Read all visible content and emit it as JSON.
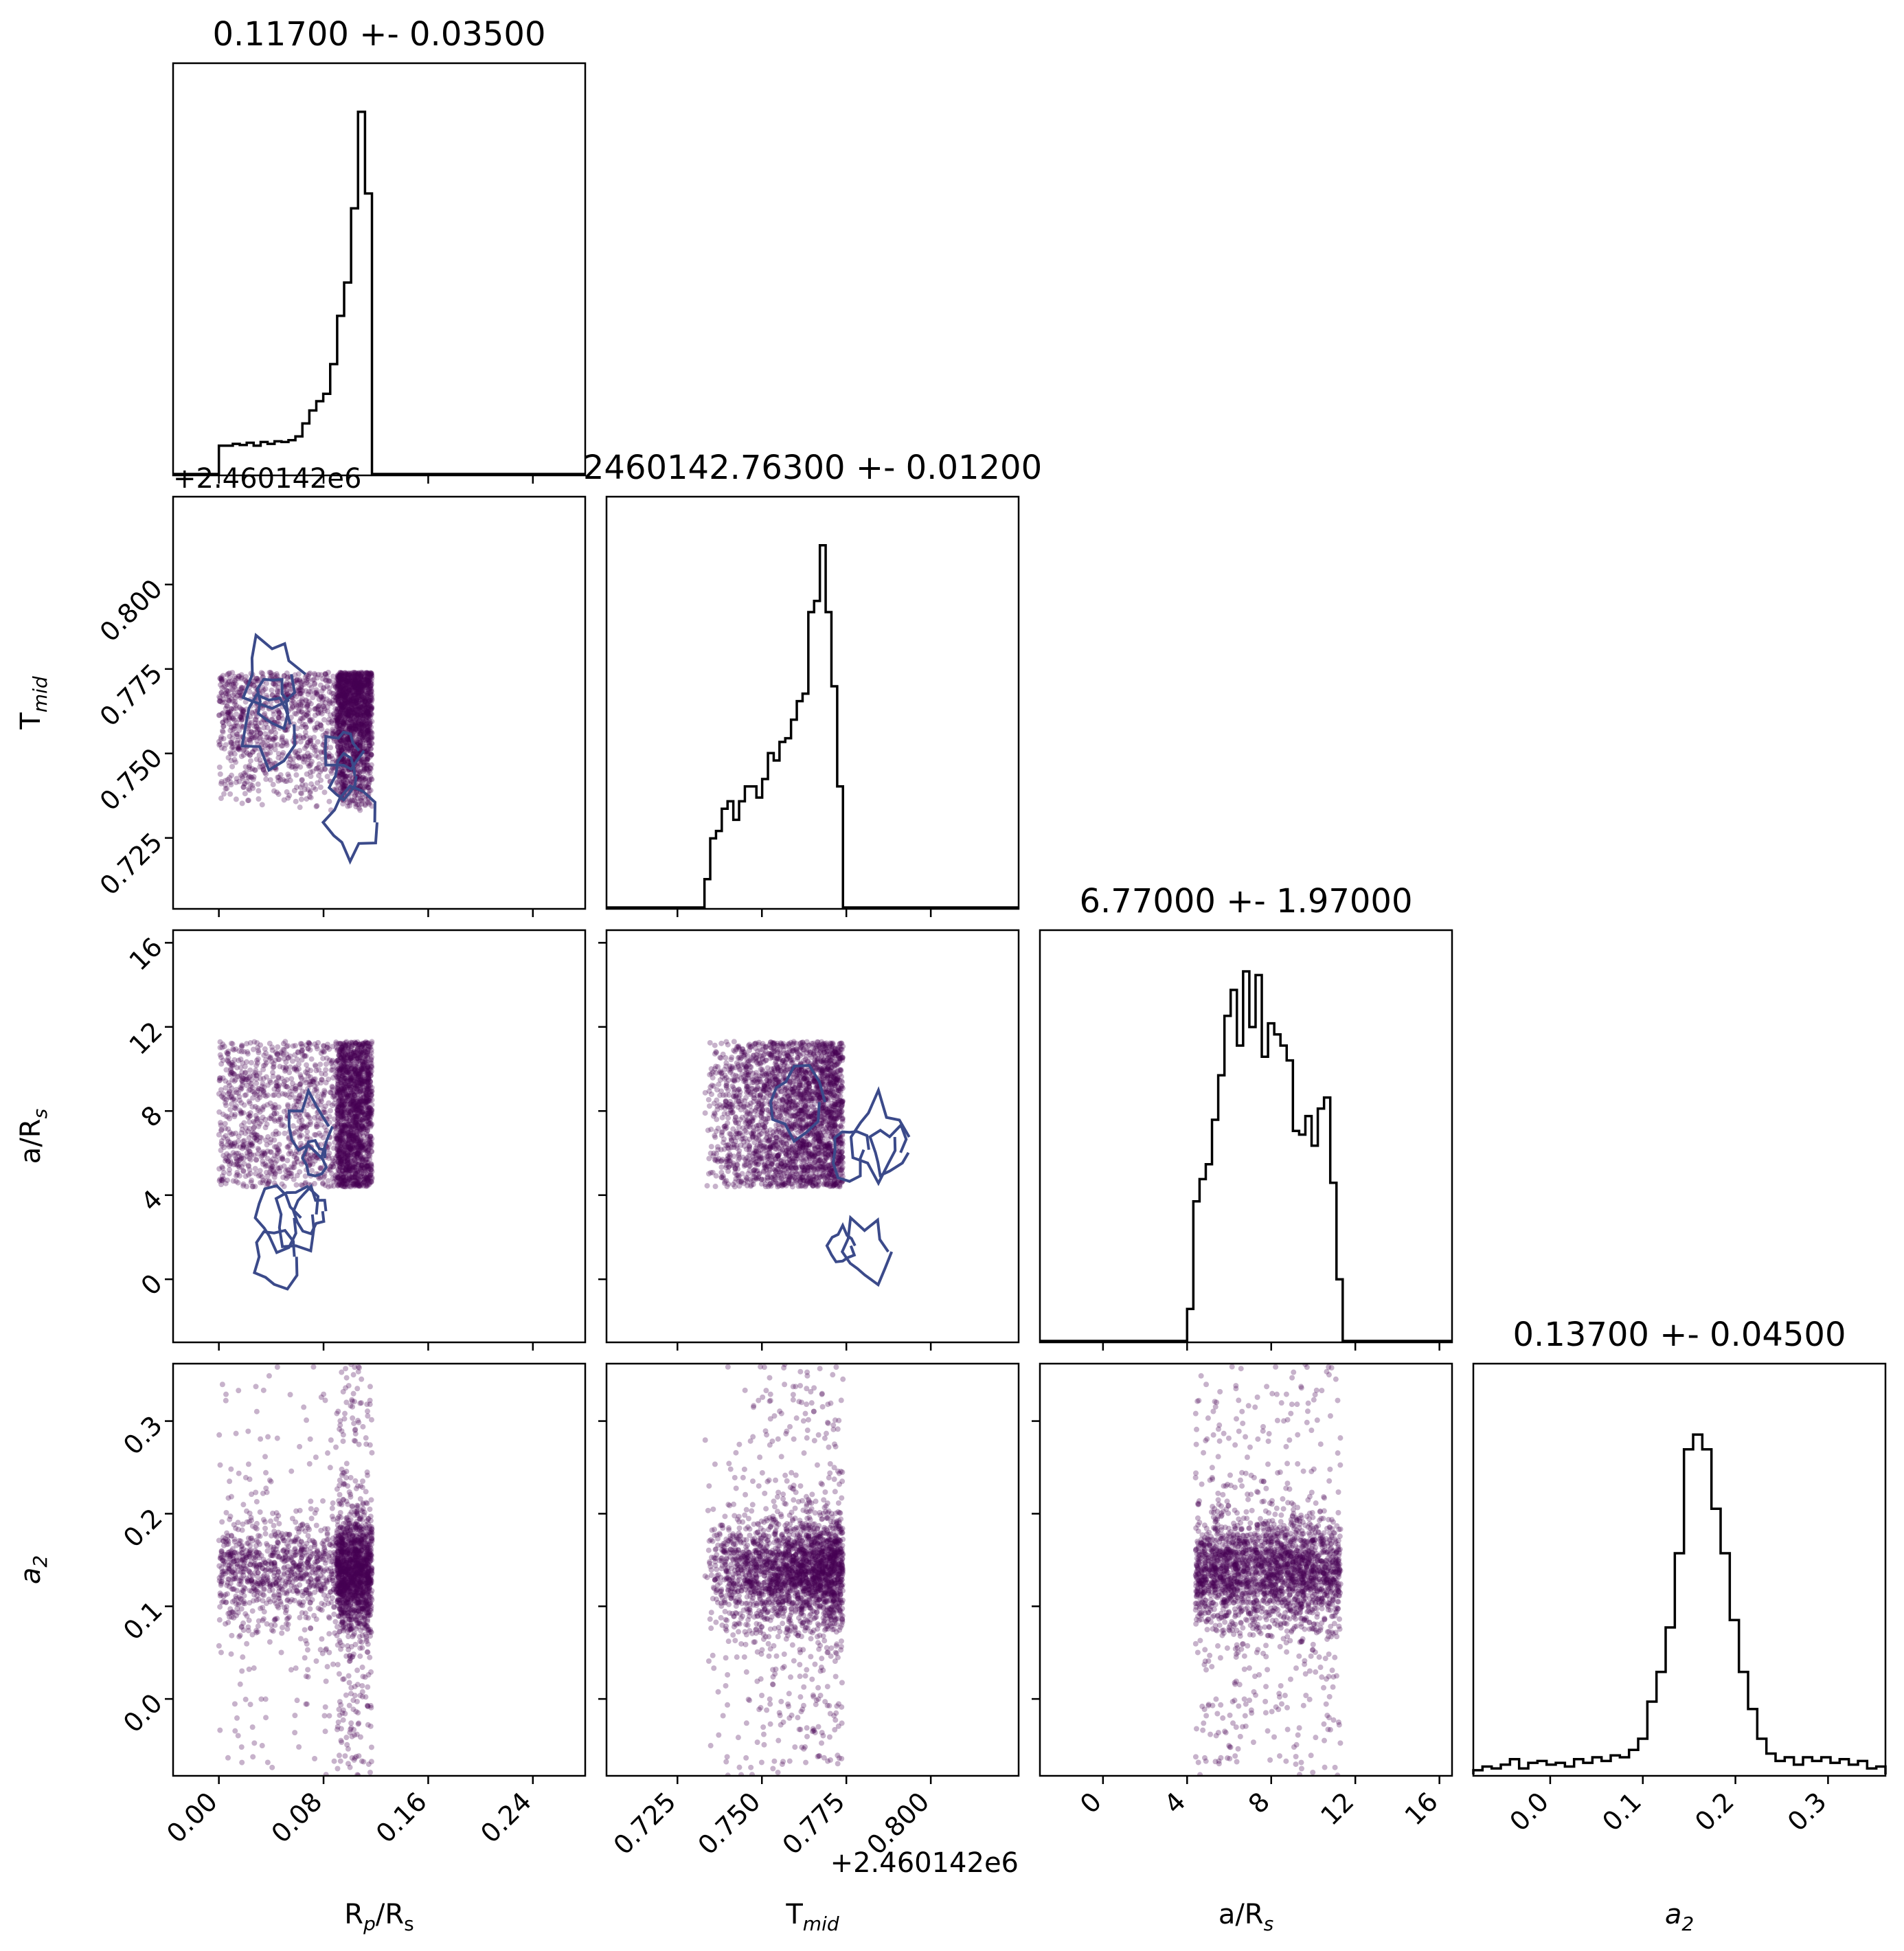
{
  "chart_data": {
    "type": "corner",
    "parameters": [
      {
        "key": "rp",
        "label": "R",
        "sub": "p",
        "suffix": "/R",
        "suffix_sub": "s",
        "title": "0.11700 +- 0.03500",
        "range": [
          -0.035,
          0.28
        ],
        "ticks": [
          "0.00",
          "0.08",
          "0.16",
          "0.24"
        ],
        "tick_values": [
          0,
          0.08,
          0.16,
          0.24
        ],
        "median": 0.117,
        "minus": 0.035,
        "plus": 0.035
      },
      {
        "key": "tmid",
        "label": "T",
        "sub": "mid",
        "suffix": "",
        "suffix_sub": "",
        "title": "2460142.76300 +- 0.01200",
        "range": [
          0.704,
          0.826
        ],
        "ticks": [
          "0.725",
          "0.750",
          "0.775",
          "0.800"
        ],
        "tick_values": [
          0.725,
          0.75,
          0.775,
          0.8
        ],
        "offset_label": "+2.460142e6",
        "median": 0.763,
        "minus": 0.012,
        "plus": 0.012
      },
      {
        "key": "ars",
        "label": "a/R",
        "sub": "s",
        "suffix": "",
        "suffix_sub": "",
        "title": "6.77000 +- 1.97000",
        "range": [
          -3,
          16.6
        ],
        "ticks": [
          "0",
          "4",
          "8",
          "12",
          "16"
        ],
        "tick_values": [
          0,
          4,
          8,
          12,
          16
        ],
        "median": 6.77,
        "minus": 1.97,
        "plus": 1.97
      },
      {
        "key": "a2",
        "label": "a",
        "sub": "2",
        "suffix": "",
        "suffix_sub": "",
        "italic": true,
        "title": "0.13700 +- 0.04500",
        "range": [
          -0.083,
          0.362
        ],
        "ticks": [
          "0.0",
          "0.1",
          "0.2",
          "0.3"
        ],
        "tick_values": [
          0,
          0.1,
          0.2,
          0.3
        ],
        "median": 0.137,
        "minus": 0.045,
        "plus": 0.045
      }
    ],
    "histograms": {
      "rp": {
        "edges_range": [
          0.0,
          0.117
        ],
        "counts": [
          0.08,
          0.08,
          0.085,
          0.082,
          0.088,
          0.08,
          0.09,
          0.085,
          0.092,
          0.09,
          0.095,
          0.105,
          0.14,
          0.175,
          0.2,
          0.22,
          0.3,
          0.43,
          0.52,
          0.72,
          0.98,
          0.76
        ]
      },
      "tmid": {
        "edges_range": [
          0.733,
          0.774
        ],
        "counts": [
          0.08,
          0.19,
          0.21,
          0.27,
          0.29,
          0.24,
          0.29,
          0.33,
          0.33,
          0.3,
          0.35,
          0.42,
          0.4,
          0.45,
          0.46,
          0.51,
          0.56,
          0.58,
          0.8,
          0.83,
          0.98,
          0.8,
          0.6,
          0.33
        ]
      },
      "ars": {
        "edges_range": [
          4.0,
          11.4
        ],
        "counts": [
          0.09,
          0.38,
          0.44,
          0.48,
          0.6,
          0.72,
          0.88,
          0.95,
          0.8,
          1.0,
          0.85,
          0.99,
          0.77,
          0.86,
          0.83,
          0.8,
          0.76,
          0.57,
          0.56,
          0.61,
          0.53,
          0.63,
          0.66,
          0.43,
          0.17
        ]
      },
      "a2": {
        "edges_range": [
          -0.083,
          0.362
        ],
        "counts": [
          0.015,
          0.025,
          0.02,
          0.03,
          0.045,
          0.02,
          0.035,
          0.04,
          0.03,
          0.035,
          0.025,
          0.045,
          0.035,
          0.05,
          0.04,
          0.055,
          0.05,
          0.07,
          0.1,
          0.2,
          0.28,
          0.4,
          0.6,
          0.88,
          0.92,
          0.88,
          0.72,
          0.6,
          0.42,
          0.28,
          0.18,
          0.1,
          0.06,
          0.04,
          0.05,
          0.03,
          0.05,
          0.04,
          0.05,
          0.035,
          0.045,
          0.03,
          0.04,
          0.02,
          0.025
        ]
      }
    },
    "scatter": {
      "color": "#440154",
      "point_opacity": 0.3,
      "sample_count": 2500,
      "rp_uniform_range": [
        0.0,
        0.117
      ],
      "rp_concentration": [
        0.09,
        0.117
      ],
      "tmid_uniform_range": [
        0.733,
        0.774
      ],
      "ars_uniform_range": [
        4.4,
        11.3
      ],
      "a2_center": 0.137,
      "a2_sigma": 0.03,
      "a2_range": [
        -0.083,
        0.362
      ]
    },
    "contour_color": "#3b4a8a",
    "line_color": "#000000"
  }
}
